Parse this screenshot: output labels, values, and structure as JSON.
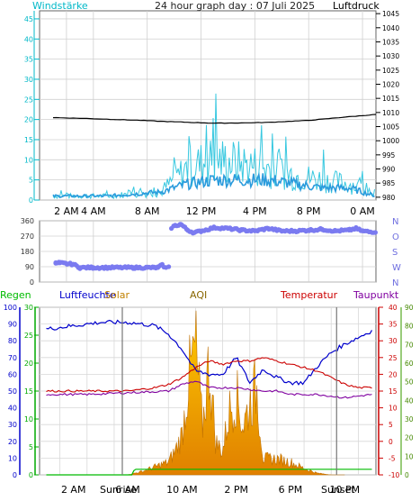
{
  "title": "24 hour graph day : 07 Juli 2025",
  "colors": {
    "wind": "#00d4d4",
    "gust": "#38c8e0",
    "avgwind": "#2a9bdc",
    "pressure": "#000000",
    "dir": "#7a7af0",
    "rain": "#00bb00",
    "hum": "#0000cc",
    "solar": "#f0a800",
    "temp": "#cc0000",
    "dew": "#8000a0",
    "windaxis": "#00b8c8",
    "dewaxis": "#55aa22"
  },
  "labels": {
    "wind": "Windstärke",
    "pressure": "Luftdruck",
    "rain": "Regen",
    "humidity": "Luftfeuchte",
    "solar": "Solar",
    "aqi": "AQI",
    "temperature": "Temperatur",
    "dewpoint": "Taupunkt",
    "sunrise": "Sunrise",
    "sunset": "Sunset"
  },
  "chart_data": [
    {
      "type": "line",
      "name": "wind_pressure",
      "x_ticks": [
        "2 AM",
        "4 AM",
        "8 AM",
        "12 PM",
        "4 PM",
        "8 PM",
        "0 AM"
      ],
      "y_left": {
        "label": "Windstärke",
        "ticks": [
          0,
          5,
          10,
          15,
          20,
          25,
          30,
          35,
          40,
          45
        ],
        "range": [
          0,
          47
        ]
      },
      "y_right": {
        "label": "Luftdruck",
        "ticks": [
          980,
          985,
          990,
          995,
          1000,
          1005,
          1010,
          1015,
          1020,
          1025,
          1030,
          1035,
          1040,
          1045
        ],
        "range": [
          979,
          1046
        ]
      },
      "series": [
        {
          "name": "Luftdruck",
          "x_hours": [
            0,
            3,
            6,
            9,
            12,
            14,
            16,
            19,
            22,
            24
          ],
          "values": [
            1008.2,
            1007.8,
            1007.3,
            1006.7,
            1006.2,
            1006.3,
            1006.5,
            1007.2,
            1008.5,
            1009.3
          ]
        },
        {
          "x_hours": [
            0,
            4,
            8,
            9,
            10,
            12,
            14,
            16,
            18,
            20,
            22,
            24
          ],
          "values": [
            1,
            1,
            2,
            5,
            8,
            10,
            9,
            8,
            6,
            5,
            4,
            2
          ]
        },
        {
          "x_hours": [
            0,
            4,
            8,
            10,
            12,
            14,
            16,
            18,
            20,
            22,
            24
          ],
          "values": [
            1,
            1,
            2,
            4,
            5,
            5,
            5,
            4,
            3,
            3,
            1
          ]
        }
      ]
    },
    {
      "type": "scatter",
      "name": "wind_direction",
      "y_ticks": [
        0,
        90,
        180,
        270,
        360
      ],
      "y_right_labels": [
        "N",
        "W",
        "S",
        "O",
        "N"
      ],
      "x_hours": [
        0.2,
        0.5,
        1.0,
        1.5,
        2.0,
        3.0,
        4.0,
        5.0,
        6.0,
        7.0,
        7.5,
        7.8,
        8.1,
        8.4,
        8.6,
        8.8,
        9,
        9.5,
        10,
        10.5,
        11,
        12,
        13,
        14,
        15,
        16,
        17,
        18,
        19,
        20,
        21,
        22,
        22.5,
        23,
        23.5
      ],
      "values": [
        110,
        112,
        108,
        105,
        85,
        85,
        85,
        85,
        85,
        85,
        85,
        85,
        100,
        85,
        90,
        315,
        330,
        340,
        305,
        290,
        300,
        320,
        315,
        305,
        300,
        315,
        300,
        300,
        305,
        310,
        300,
        305,
        315,
        300,
        295
      ]
    },
    {
      "type": "area",
      "name": "weather_multi",
      "x_ticks": [
        "2 AM",
        "6 AM",
        "10 AM",
        "2 PM",
        "6 PM",
        "10 PM"
      ],
      "y_rain": {
        "label": "Regen",
        "ticks": [
          0,
          5,
          10,
          15,
          20,
          25,
          30
        ]
      },
      "y_hum": {
        "label": "Luftfeuchte",
        "ticks": [
          0,
          10,
          20,
          30,
          40,
          50,
          60,
          70,
          80,
          90,
          100
        ]
      },
      "y_temp": {
        "label": "Temperatur",
        "ticks": [
          -10,
          -5,
          0,
          5,
          10,
          15,
          20,
          25,
          30,
          35,
          40
        ]
      },
      "y_dew": {
        "label": "Taupunkt",
        "ticks": [
          0,
          10,
          20,
          30,
          40,
          50,
          60,
          70,
          80,
          90
        ]
      },
      "series": [
        {
          "name": "Luftfeuchte",
          "x_hours": [
            0,
            1,
            2,
            3,
            4,
            5,
            6,
            7,
            8,
            9,
            10,
            11,
            12,
            13,
            14,
            15,
            16,
            17,
            18,
            19,
            20,
            21,
            22,
            23,
            24
          ],
          "values": [
            87,
            88,
            89,
            90,
            91,
            91,
            91,
            90,
            89,
            84,
            75,
            62,
            60,
            60,
            70,
            55,
            63,
            58,
            55,
            55,
            65,
            73,
            78,
            82,
            86
          ]
        },
        {
          "name": "Temperatur",
          "x_hours": [
            0,
            2,
            4,
            6,
            7,
            8,
            9,
            10,
            11,
            12,
            13,
            14,
            15,
            16,
            17,
            18,
            19,
            20,
            21,
            22,
            23,
            24
          ],
          "values": [
            15,
            15,
            15,
            15,
            15.5,
            16,
            17,
            19,
            22,
            24,
            23,
            24,
            24,
            25,
            24,
            23,
            22,
            21,
            19,
            17,
            16,
            16
          ]
        },
        {
          "name": "Taupunkt",
          "x_hours": [
            0,
            3,
            6,
            9,
            10,
            11,
            12,
            14,
            16,
            17,
            18,
            20,
            22,
            24
          ],
          "values": [
            14,
            14,
            14.5,
            15,
            17,
            18,
            16,
            16,
            15,
            15,
            14,
            14,
            13,
            14
          ]
        },
        {
          "name": "Regen",
          "x_hours": [
            0,
            6.3,
            6.5,
            24
          ],
          "values": [
            0,
            0,
            1,
            1
          ]
        },
        {
          "name": "Solar",
          "x_hours": [
            6,
            7,
            8,
            9,
            9.5,
            10,
            10.5,
            11,
            11.5,
            12,
            12.5,
            13,
            13.5,
            14,
            14.5,
            15,
            15.5,
            16,
            17,
            18,
            19,
            20,
            21,
            22
          ],
          "values": [
            0,
            2,
            5,
            8,
            15,
            25,
            60,
            80,
            30,
            70,
            20,
            15,
            40,
            50,
            30,
            45,
            55,
            10,
            10,
            8,
            4,
            1,
            0,
            0
          ]
        }
      ]
    }
  ]
}
